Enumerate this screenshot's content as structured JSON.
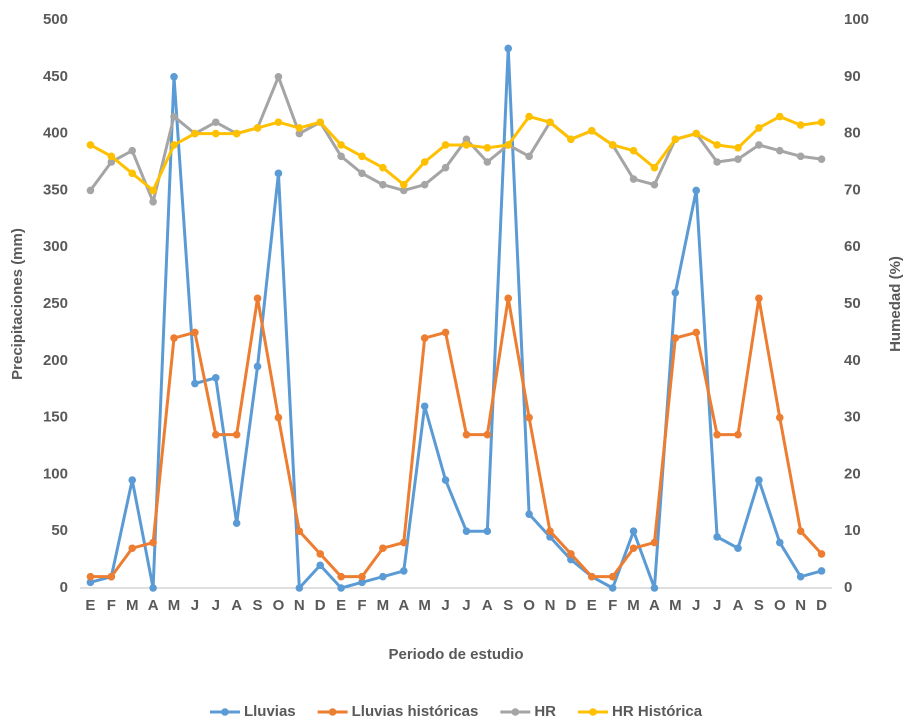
{
  "chart_data": {
    "type": "line",
    "x_label": "Periodo de estudio",
    "y_label": "Precipitaciones (mm)",
    "y2_label": "Humedad (%)",
    "categories": [
      "E",
      "F",
      "M",
      "A",
      "M",
      "J",
      "J",
      "A",
      "S",
      "O",
      "N",
      "D",
      "E",
      "F",
      "M",
      "A",
      "M",
      "J",
      "J",
      "A",
      "S",
      "O",
      "N",
      "D",
      "E",
      "F",
      "M",
      "A",
      "M",
      "J",
      "J",
      "A",
      "S",
      "O",
      "N",
      "D"
    ],
    "ylim": [
      0,
      500
    ],
    "yticks": [
      0,
      50,
      100,
      150,
      200,
      250,
      300,
      350,
      400,
      450,
      500
    ],
    "y2lim": [
      0,
      100
    ],
    "y2ticks": [
      0,
      10,
      20,
      30,
      40,
      50,
      60,
      70,
      80,
      90,
      100
    ],
    "legend": "bottom",
    "series": [
      {
        "name": "Lluvias",
        "color": "#5B9BD5",
        "axis": "y",
        "values": [
          5,
          10,
          95,
          0,
          450,
          180,
          185,
          57,
          195,
          365,
          0,
          20,
          0,
          5,
          10,
          15,
          160,
          95,
          50,
          50,
          475,
          65,
          45,
          25,
          10,
          0,
          50,
          0,
          260,
          350,
          45,
          35,
          95,
          40,
          10,
          15
        ]
      },
      {
        "name": "Lluvias históricas",
        "color": "#ED7D31",
        "axis": "y",
        "values": [
          10,
          10,
          35,
          40,
          220,
          225,
          135,
          135,
          255,
          150,
          50,
          30,
          10,
          10,
          35,
          40,
          220,
          225,
          135,
          135,
          255,
          150,
          50,
          30,
          10,
          10,
          35,
          40,
          220,
          225,
          135,
          135,
          255,
          150,
          50,
          30
        ]
      },
      {
        "name": "HR",
        "color": "#A5A5A5",
        "axis": "y2",
        "values": [
          70,
          75,
          77,
          68,
          83,
          80,
          82,
          80,
          81,
          90,
          80,
          82,
          76,
          73,
          71,
          70,
          71,
          74,
          79,
          75,
          78,
          76,
          82,
          79,
          80.5,
          78,
          72,
          71,
          79,
          80,
          75,
          75.5,
          78,
          77,
          76,
          75.5
        ]
      },
      {
        "name": "HR Histórica",
        "color": "#FFC000",
        "axis": "y2",
        "values": [
          78,
          76,
          73,
          70,
          78,
          80,
          80,
          80,
          81,
          82,
          81,
          82,
          78,
          76,
          74,
          71,
          75,
          78,
          78,
          77.5,
          78,
          83,
          82,
          79,
          80.5,
          78,
          77,
          74,
          79,
          80,
          78,
          77.5,
          81,
          83,
          81.5,
          82
        ]
      }
    ]
  }
}
